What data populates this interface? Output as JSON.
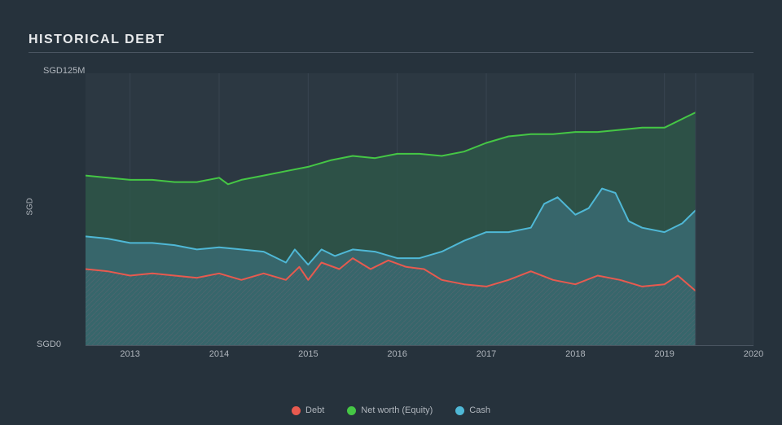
{
  "title": "HISTORICAL DEBT",
  "chart": {
    "type": "area",
    "background_color": "#26323c",
    "plot_background_color": "#2c3842",
    "grid_color": "#384450",
    "axis_color": "#4a5561",
    "text_color": "#b0b6bd",
    "title_color": "#e8eaec",
    "y_axis": {
      "label": "SGD",
      "tick_top": "SGD125M",
      "tick_bottom": "SGD0",
      "min": 0,
      "max": 125
    },
    "x_axis": {
      "ticks": [
        "2013",
        "2014",
        "2015",
        "2016",
        "2017",
        "2018",
        "2019",
        "2020"
      ],
      "min": 2012.5,
      "max": 2020
    },
    "hatch_pattern": {
      "stroke": "#5a6570",
      "stroke_width": 0.8,
      "spacing": 6
    },
    "series": [
      {
        "name": "Net worth (Equity)",
        "color": "#45c745",
        "fill": "#2d5a4a",
        "fill_opacity": 0.75,
        "line_width": 2,
        "data": [
          [
            2012.5,
            78
          ],
          [
            2012.75,
            77
          ],
          [
            2013.0,
            76
          ],
          [
            2013.25,
            76
          ],
          [
            2013.5,
            75
          ],
          [
            2013.75,
            75
          ],
          [
            2014.0,
            77
          ],
          [
            2014.1,
            74
          ],
          [
            2014.25,
            76
          ],
          [
            2014.5,
            78
          ],
          [
            2014.75,
            80
          ],
          [
            2015.0,
            82
          ],
          [
            2015.25,
            85
          ],
          [
            2015.5,
            87
          ],
          [
            2015.75,
            86
          ],
          [
            2016.0,
            88
          ],
          [
            2016.25,
            88
          ],
          [
            2016.5,
            87
          ],
          [
            2016.75,
            89
          ],
          [
            2017.0,
            93
          ],
          [
            2017.25,
            96
          ],
          [
            2017.5,
            97
          ],
          [
            2017.75,
            97
          ],
          [
            2018.0,
            98
          ],
          [
            2018.25,
            98
          ],
          [
            2018.5,
            99
          ],
          [
            2018.75,
            100
          ],
          [
            2019.0,
            100
          ],
          [
            2019.25,
            105
          ],
          [
            2019.35,
            107
          ]
        ]
      },
      {
        "name": "Cash",
        "color": "#4fb8d6",
        "fill": "#3a6b74",
        "fill_opacity": 0.8,
        "line_width": 2,
        "data": [
          [
            2012.5,
            50
          ],
          [
            2012.75,
            49
          ],
          [
            2013.0,
            47
          ],
          [
            2013.25,
            47
          ],
          [
            2013.5,
            46
          ],
          [
            2013.75,
            44
          ],
          [
            2014.0,
            45
          ],
          [
            2014.25,
            44
          ],
          [
            2014.5,
            43
          ],
          [
            2014.75,
            38
          ],
          [
            2014.85,
            44
          ],
          [
            2015.0,
            37
          ],
          [
            2015.15,
            44
          ],
          [
            2015.3,
            41
          ],
          [
            2015.5,
            44
          ],
          [
            2015.75,
            43
          ],
          [
            2016.0,
            40
          ],
          [
            2016.25,
            40
          ],
          [
            2016.5,
            43
          ],
          [
            2016.75,
            48
          ],
          [
            2017.0,
            52
          ],
          [
            2017.25,
            52
          ],
          [
            2017.5,
            54
          ],
          [
            2017.65,
            65
          ],
          [
            2017.8,
            68
          ],
          [
            2018.0,
            60
          ],
          [
            2018.15,
            63
          ],
          [
            2018.3,
            72
          ],
          [
            2018.45,
            70
          ],
          [
            2018.6,
            57
          ],
          [
            2018.75,
            54
          ],
          [
            2019.0,
            52
          ],
          [
            2019.2,
            56
          ],
          [
            2019.35,
            62
          ]
        ]
      },
      {
        "name": "Debt",
        "color": "#e85a4f",
        "fill": "hatch",
        "fill_opacity": 0.6,
        "line_width": 2,
        "data": [
          [
            2012.5,
            35
          ],
          [
            2012.75,
            34
          ],
          [
            2013.0,
            32
          ],
          [
            2013.25,
            33
          ],
          [
            2013.5,
            32
          ],
          [
            2013.75,
            31
          ],
          [
            2014.0,
            33
          ],
          [
            2014.25,
            30
          ],
          [
            2014.5,
            33
          ],
          [
            2014.75,
            30
          ],
          [
            2014.9,
            36
          ],
          [
            2015.0,
            30
          ],
          [
            2015.15,
            38
          ],
          [
            2015.35,
            35
          ],
          [
            2015.5,
            40
          ],
          [
            2015.7,
            35
          ],
          [
            2015.9,
            39
          ],
          [
            2016.1,
            36
          ],
          [
            2016.3,
            35
          ],
          [
            2016.5,
            30
          ],
          [
            2016.75,
            28
          ],
          [
            2017.0,
            27
          ],
          [
            2017.25,
            30
          ],
          [
            2017.5,
            34
          ],
          [
            2017.75,
            30
          ],
          [
            2018.0,
            28
          ],
          [
            2018.25,
            32
          ],
          [
            2018.5,
            30
          ],
          [
            2018.75,
            27
          ],
          [
            2019.0,
            28
          ],
          [
            2019.15,
            32
          ],
          [
            2019.35,
            25
          ]
        ]
      }
    ],
    "data_end_x": 2019.35,
    "legend": {
      "items": [
        {
          "label": "Debt",
          "color": "#e85a4f"
        },
        {
          "label": "Net worth (Equity)",
          "color": "#45c745"
        },
        {
          "label": "Cash",
          "color": "#4fb8d6"
        }
      ]
    }
  }
}
